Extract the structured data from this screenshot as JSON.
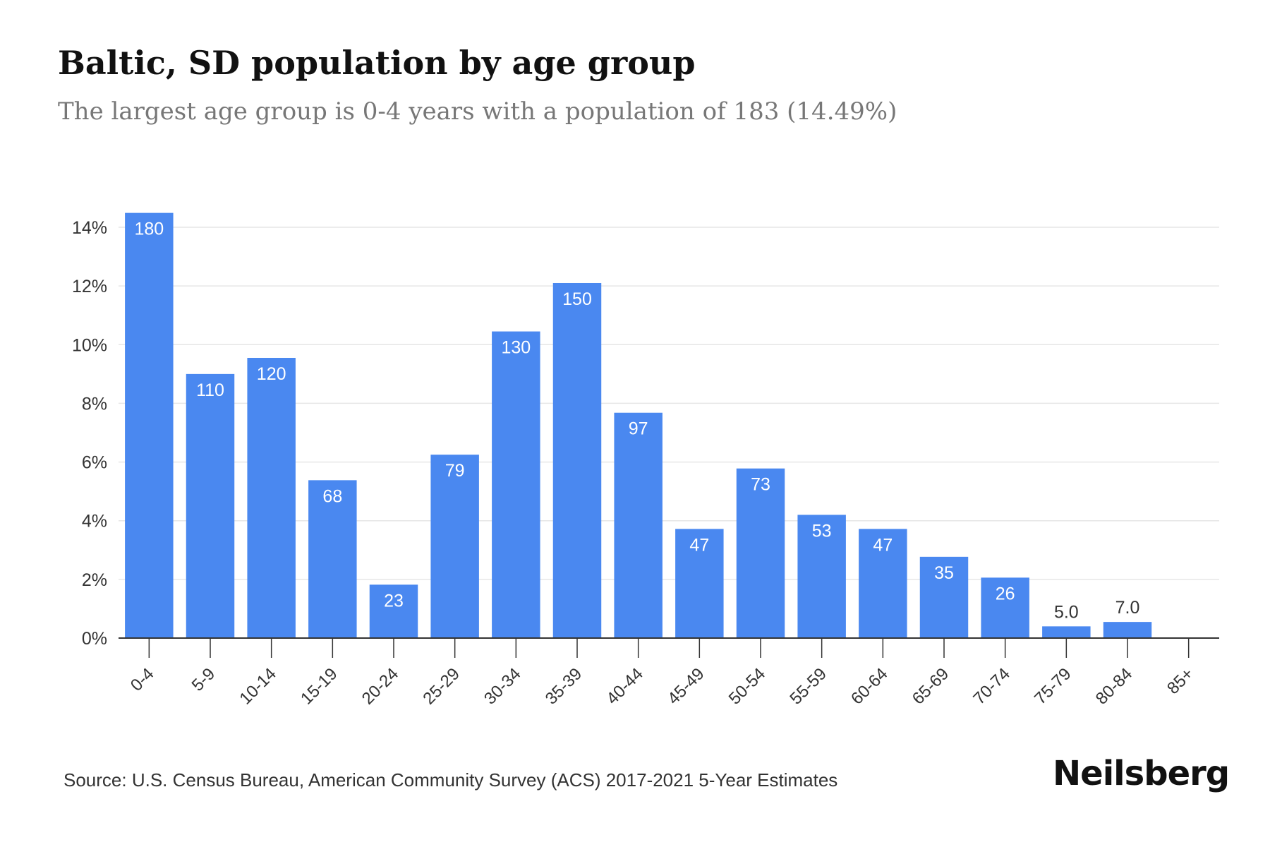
{
  "header": {
    "title": "Baltic, SD population by age group",
    "subtitle": "The largest age group is 0-4 years with a population of 183 (14.49%)"
  },
  "footer": {
    "source": "Source: U.S. Census Bureau, American Community Survey (ACS) 2017-2021 5-Year Estimates",
    "logo": "Neilsberg"
  },
  "colors": {
    "bar": "#4a88f0",
    "grid": "#e6e6e6",
    "axis": "#333333",
    "bar_label": "#ffffff",
    "outside_label": "#333333"
  },
  "chart_data": {
    "type": "bar",
    "title": "Baltic, SD population by age group",
    "xlabel": "",
    "ylabel": "",
    "ylim": [
      0,
      14
    ],
    "y_ticks": [
      0,
      2,
      4,
      6,
      8,
      10,
      12,
      14
    ],
    "y_tick_labels": [
      "0%",
      "2%",
      "4%",
      "6%",
      "8%",
      "10%",
      "12%",
      "14%"
    ],
    "grid": true,
    "categories": [
      "0-4",
      "5-9",
      "10-14",
      "15-19",
      "20-24",
      "25-29",
      "30-34",
      "35-39",
      "40-44",
      "45-49",
      "50-54",
      "55-59",
      "60-64",
      "65-69",
      "70-74",
      "75-79",
      "80-84",
      "85+"
    ],
    "values_percent": [
      14.49,
      9.0,
      9.55,
      5.38,
      1.82,
      6.25,
      10.45,
      12.1,
      7.68,
      3.72,
      5.78,
      4.2,
      3.72,
      2.77,
      2.06,
      0.4,
      0.55,
      0
    ],
    "data_labels": [
      "180",
      "110",
      "120",
      "68",
      "23",
      "79",
      "130",
      "150",
      "97",
      "47",
      "73",
      "53",
      "47",
      "35",
      "26",
      "5.0",
      "7.0",
      ""
    ]
  }
}
